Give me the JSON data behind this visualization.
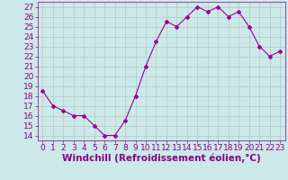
{
  "x": [
    0,
    1,
    2,
    3,
    4,
    5,
    6,
    7,
    8,
    9,
    10,
    11,
    12,
    13,
    14,
    15,
    16,
    17,
    18,
    19,
    20,
    21,
    22,
    23
  ],
  "y": [
    18.5,
    17.0,
    16.5,
    16.0,
    16.0,
    15.0,
    14.0,
    14.0,
    15.5,
    18.0,
    21.0,
    23.5,
    25.5,
    25.0,
    26.0,
    27.0,
    26.5,
    27.0,
    26.0,
    26.5,
    25.0,
    23.0,
    22.0,
    22.5
  ],
  "line_color": "#990099",
  "marker": "D",
  "marker_size": 2,
  "bg_color": "#cce8e8",
  "grid_color": "#b0c8c8",
  "xlabel": "Windchill (Refroidissement éolien,°C)",
  "xlabel_color": "#880088",
  "ylim": [
    13.5,
    27.5
  ],
  "xlim": [
    -0.5,
    23.5
  ],
  "yticks": [
    14,
    15,
    16,
    17,
    18,
    19,
    20,
    21,
    22,
    23,
    24,
    25,
    26,
    27
  ],
  "xticks": [
    0,
    1,
    2,
    3,
    4,
    5,
    6,
    7,
    8,
    9,
    10,
    11,
    12,
    13,
    14,
    15,
    16,
    17,
    18,
    19,
    20,
    21,
    22,
    23
  ],
  "tick_color": "#880088",
  "tick_label_fontsize": 6.5,
  "xlabel_fontsize": 7.5
}
